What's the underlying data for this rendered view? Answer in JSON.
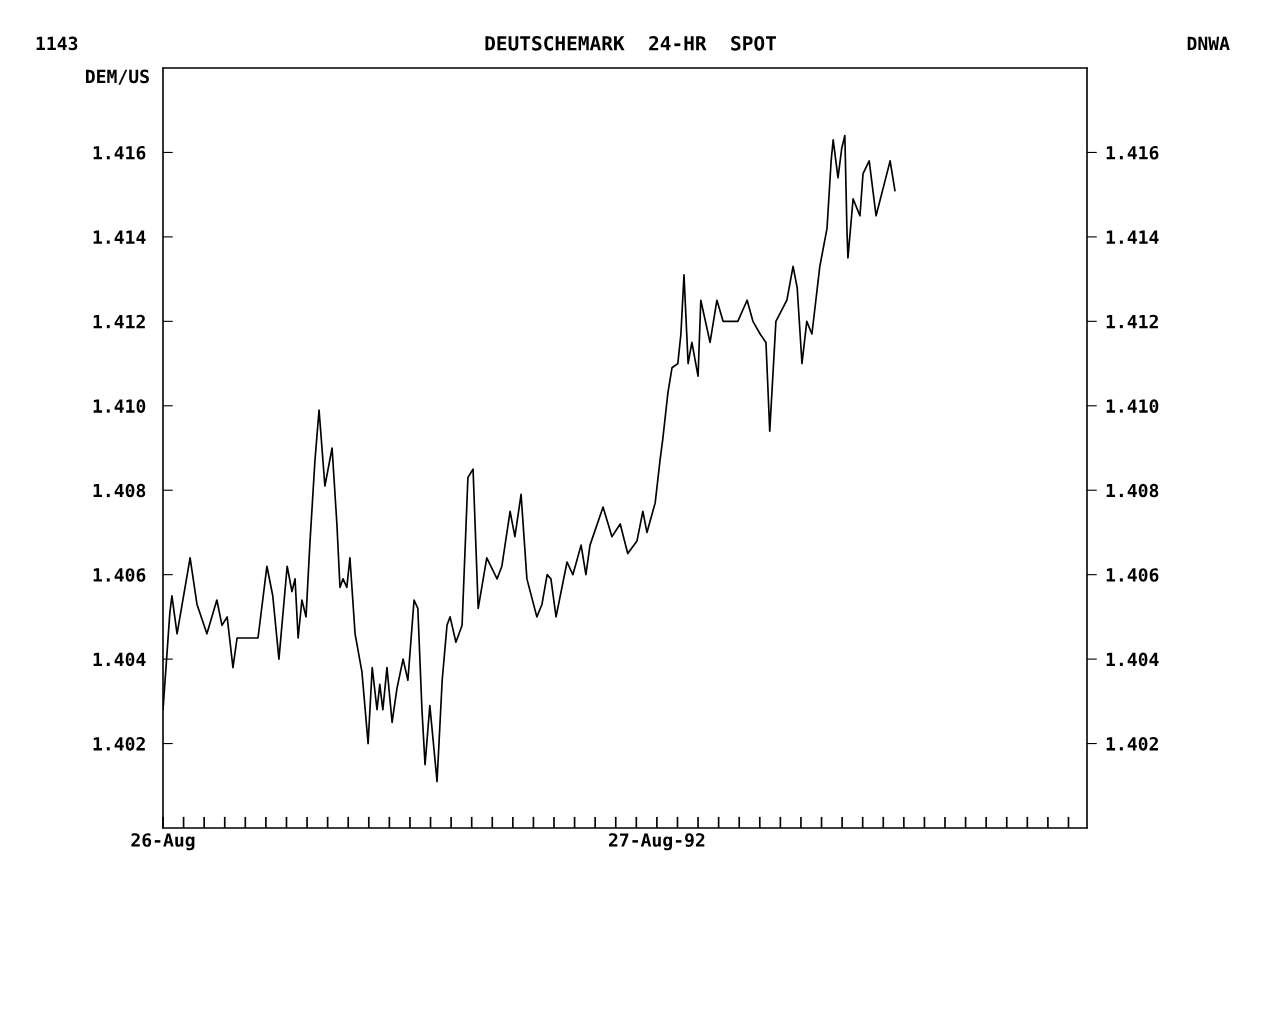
{
  "chart_data": {
    "type": "line",
    "title": "DEUTSCHEMARK  24-HR  SPOT",
    "ylabel": "DEM/US",
    "annotations": [
      "1143",
      "DNWA"
    ],
    "series": [
      {
        "color": "#000000",
        "x": [
          "1992-08-26T00:00",
          "1992-08-26T00:20",
          "1992-08-26T00:26",
          "1992-08-26T00:41",
          "1992-08-26T01:19",
          "1992-08-26T01:39",
          "1992-08-26T02:08",
          "1992-08-26T02:37",
          "1992-08-26T02:52",
          "1992-08-26T03:07",
          "1992-08-26T03:24",
          "1992-08-26T03:36",
          "1992-08-26T04:37",
          "1992-08-26T05:03",
          "1992-08-26T05:20",
          "1992-08-26T05:38",
          "1992-08-26T06:02",
          "1992-08-26T06:16",
          "1992-08-26T06:25",
          "1992-08-26T06:34",
          "1992-08-26T06:45",
          "1992-08-26T06:57",
          "1992-08-26T07:08",
          "1992-08-26T07:23",
          "1992-08-26T07:35",
          "1992-08-26T07:52",
          "1992-08-26T08:13",
          "1992-08-26T08:27",
          "1992-08-26T08:36",
          "1992-08-26T08:45",
          "1992-08-26T08:56",
          "1992-08-26T09:05",
          "1992-08-26T09:20",
          "1992-08-26T09:40",
          "1992-08-26T09:58",
          "1992-08-26T10:10",
          "1992-08-26T10:24",
          "1992-08-26T10:32",
          "1992-08-26T10:41",
          "1992-08-26T10:53",
          "1992-08-26T11:08",
          "1992-08-26T11:22",
          "1992-08-26T11:40",
          "1992-08-26T11:54",
          "1992-08-26T12:12",
          "1992-08-26T12:23",
          "1992-08-26T12:35",
          "1992-08-26T12:44",
          "1992-08-26T12:58",
          "1992-08-26T13:19",
          "1992-08-26T13:34",
          "1992-08-26T13:48",
          "1992-08-26T13:57",
          "1992-08-26T14:14",
          "1992-08-26T14:32",
          "1992-08-26T14:49",
          "1992-08-26T15:04",
          "1992-08-26T15:19",
          "1992-08-26T15:44",
          "1992-08-26T16:14",
          "1992-08-26T16:28",
          "1992-08-26T16:52",
          "1992-08-26T17:06",
          "1992-08-26T17:24",
          "1992-08-26T17:41",
          "1992-08-26T18:10",
          "1992-08-26T18:25",
          "1992-08-26T18:40",
          "1992-08-26T18:51",
          "1992-08-26T19:06",
          "1992-08-26T19:38",
          "1992-08-26T19:55",
          "1992-08-26T20:19",
          "1992-08-26T20:33",
          "1992-08-26T20:45",
          "1992-08-26T21:23",
          "1992-08-26T21:49",
          "1992-08-26T22:13",
          "1992-08-26T22:35",
          "1992-08-26T23:02",
          "1992-08-26T23:19",
          "1992-08-26T23:31",
          "1992-08-26T23:55",
          "1992-08-27T00:09",
          "1992-08-27T00:17",
          "1992-08-27T00:32",
          "1992-08-27T00:44",
          "1992-08-27T01:01",
          "1992-08-27T01:10",
          "1992-08-27T01:19",
          "1992-08-27T01:31",
          "1992-08-27T01:42",
          "1992-08-27T02:00",
          "1992-08-27T02:08",
          "1992-08-27T02:35",
          "1992-08-27T02:55",
          "1992-08-27T03:13",
          "1992-08-27T03:56",
          "1992-08-27T04:23",
          "1992-08-27T04:40",
          "1992-08-27T05:01",
          "1992-08-27T05:18",
          "1992-08-27T05:29",
          "1992-08-27T05:47",
          "1992-08-27T06:19",
          "1992-08-27T06:37",
          "1992-08-27T06:49",
          "1992-08-27T07:03",
          "1992-08-27T07:17",
          "1992-08-27T07:32",
          "1992-08-27T07:55",
          "1992-08-27T08:16",
          "1992-08-27T08:28",
          "1992-08-27T08:34",
          "1992-08-27T08:48",
          "1992-08-27T08:59",
          "1992-08-27T09:08",
          "1992-08-27T09:14",
          "1992-08-27T09:17",
          "1992-08-27T09:32",
          "1992-08-27T09:52",
          "1992-08-27T10:01",
          "1992-08-27T10:19",
          "1992-08-27T10:39",
          "1992-08-27T11:20",
          "1992-08-27T11:34"
        ],
        "values": [
          1.4028,
          1.4051,
          1.4055,
          1.4046,
          1.4064,
          1.4053,
          1.4046,
          1.4054,
          1.4048,
          1.405,
          1.4038,
          1.4045,
          1.4045,
          1.4062,
          1.4055,
          1.404,
          1.4062,
          1.4056,
          1.4059,
          1.4045,
          1.4054,
          1.405,
          1.4067,
          1.4087,
          1.4099,
          1.4081,
          1.409,
          1.4072,
          1.4057,
          1.4059,
          1.4057,
          1.4064,
          1.4046,
          1.4037,
          1.402,
          1.4038,
          1.4028,
          1.4034,
          1.4028,
          1.4038,
          1.4025,
          1.4033,
          1.404,
          1.4035,
          1.4054,
          1.4052,
          1.4028,
          1.4015,
          1.4029,
          1.4011,
          1.4035,
          1.4048,
          1.405,
          1.4044,
          1.4048,
          1.4083,
          1.4085,
          1.4052,
          1.4064,
          1.4059,
          1.4062,
          1.4075,
          1.4069,
          1.4079,
          1.4059,
          1.405,
          1.4053,
          1.406,
          1.4059,
          1.405,
          1.4063,
          1.406,
          1.4067,
          1.406,
          1.4067,
          1.4076,
          1.4069,
          1.4072,
          1.4065,
          1.4068,
          1.4075,
          1.407,
          1.4077,
          1.4087,
          1.4092,
          1.4103,
          1.4109,
          1.411,
          1.4117,
          1.4131,
          1.411,
          1.4115,
          1.4107,
          1.4125,
          1.4115,
          1.4125,
          1.412,
          1.412,
          1.4125,
          1.412,
          1.4117,
          1.4115,
          1.4094,
          1.412,
          1.4125,
          1.4133,
          1.4128,
          1.411,
          1.412,
          1.4117,
          1.4133,
          1.4142,
          1.4158,
          1.4163,
          1.4154,
          1.4161,
          1.4164,
          1.4142,
          1.4135,
          1.4149,
          1.4145,
          1.4155,
          1.4158,
          1.4145,
          1.4158,
          1.4151
        ]
      }
    ],
    "xlim": [
      "1992-08-26T00:00",
      "1992-08-27T20:54"
    ],
    "xticks": [
      {
        "value": "1992-08-26T00:00",
        "label": "26-Aug"
      },
      {
        "value": "1992-08-26T01:00",
        "label": null
      },
      {
        "value": "1992-08-26T02:00",
        "label": null
      },
      {
        "value": "1992-08-26T03:00",
        "label": null
      },
      {
        "value": "1992-08-26T04:00",
        "label": null
      },
      {
        "value": "1992-08-26T05:00",
        "label": null
      },
      {
        "value": "1992-08-26T06:00",
        "label": null
      },
      {
        "value": "1992-08-26T07:00",
        "label": null
      },
      {
        "value": "1992-08-26T08:00",
        "label": null
      },
      {
        "value": "1992-08-26T09:00",
        "label": null
      },
      {
        "value": "1992-08-26T10:00",
        "label": null
      },
      {
        "value": "1992-08-26T11:00",
        "label": null
      },
      {
        "value": "1992-08-26T12:00",
        "label": null
      },
      {
        "value": "1992-08-26T13:00",
        "label": null
      },
      {
        "value": "1992-08-26T14:00",
        "label": null
      },
      {
        "value": "1992-08-26T15:00",
        "label": null
      },
      {
        "value": "1992-08-26T16:00",
        "label": null
      },
      {
        "value": "1992-08-26T17:00",
        "label": null
      },
      {
        "value": "1992-08-26T18:00",
        "label": null
      },
      {
        "value": "1992-08-26T19:00",
        "label": null
      },
      {
        "value": "1992-08-26T20:00",
        "label": null
      },
      {
        "value": "1992-08-26T21:00",
        "label": null
      },
      {
        "value": "1992-08-26T22:00",
        "label": null
      },
      {
        "value": "1992-08-26T23:00",
        "label": null
      },
      {
        "value": "1992-08-27T00:00",
        "label": "27-Aug-92"
      },
      {
        "value": "1992-08-27T01:00",
        "label": null
      },
      {
        "value": "1992-08-27T02:00",
        "label": null
      },
      {
        "value": "1992-08-27T03:00",
        "label": null
      },
      {
        "value": "1992-08-27T04:00",
        "label": null
      },
      {
        "value": "1992-08-27T05:00",
        "label": null
      },
      {
        "value": "1992-08-27T06:00",
        "label": null
      },
      {
        "value": "1992-08-27T07:00",
        "label": null
      },
      {
        "value": "1992-08-27T08:00",
        "label": null
      },
      {
        "value": "1992-08-27T09:00",
        "label": null
      },
      {
        "value": "1992-08-27T10:00",
        "label": null
      },
      {
        "value": "1992-08-27T11:00",
        "label": null
      },
      {
        "value": "1992-08-27T12:00",
        "label": null
      },
      {
        "value": "1992-08-27T13:00",
        "label": null
      },
      {
        "value": "1992-08-27T14:00",
        "label": null
      },
      {
        "value": "1992-08-27T15:00",
        "label": null
      },
      {
        "value": "1992-08-27T16:00",
        "label": null
      },
      {
        "value": "1992-08-27T17:00",
        "label": null
      },
      {
        "value": "1992-08-27T18:00",
        "label": null
      },
      {
        "value": "1992-08-27T19:00",
        "label": null
      },
      {
        "value": "1992-08-27T20:00",
        "label": null
      }
    ],
    "ylim": [
      1.4,
      1.418
    ],
    "yticks": [
      1.402,
      1.404,
      1.406,
      1.408,
      {
        "value": 1.41,
        "label": "1.410"
      },
      1.412,
      1.414,
      1.416
    ],
    "y2lim": [
      1.4,
      1.418
    ],
    "y2ticks": [
      1.402,
      1.404,
      1.406,
      1.408,
      {
        "value": 1.41,
        "label": "1.410"
      },
      1.412,
      1.414,
      1.416
    ],
    "grid": false,
    "marker": "none",
    "line_style": "solid"
  }
}
